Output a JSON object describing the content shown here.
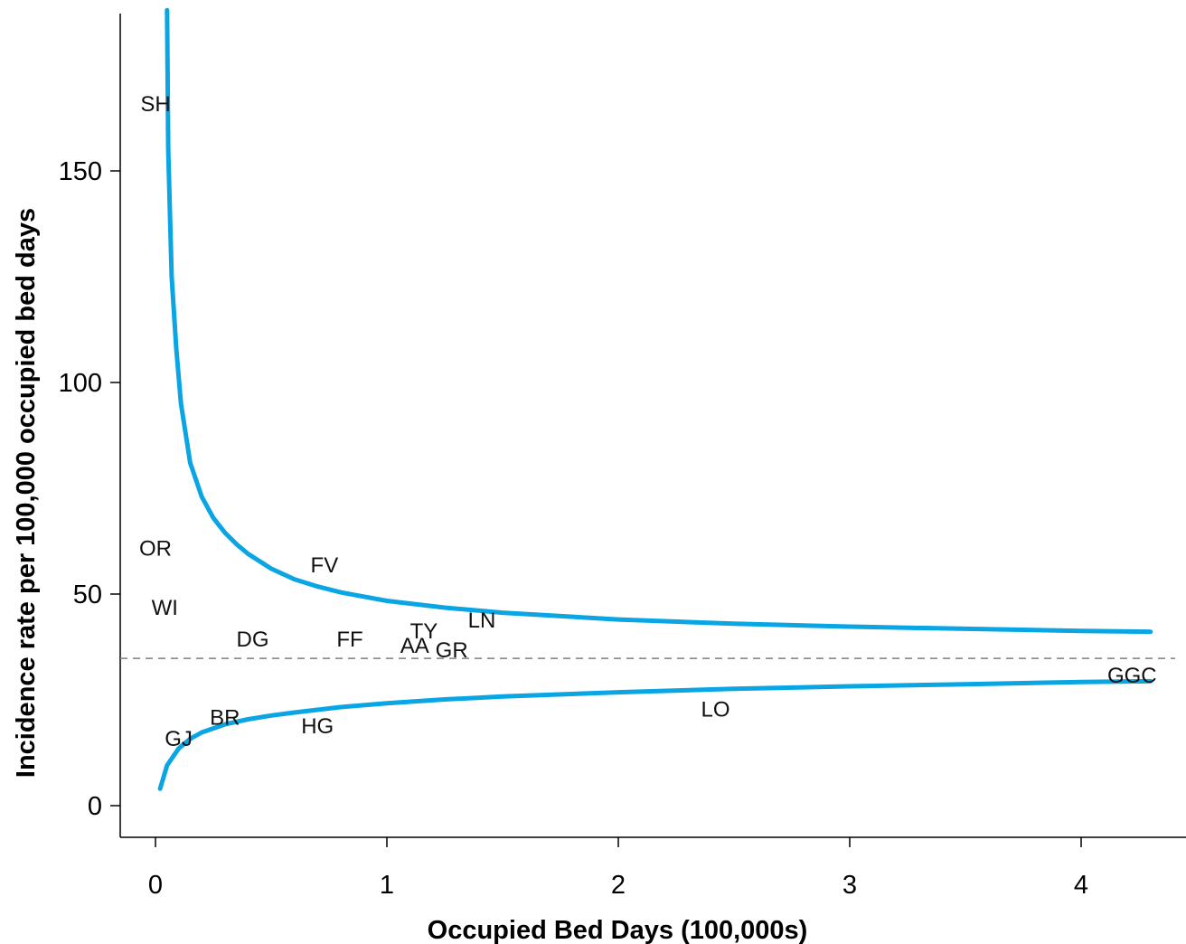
{
  "chart_data": {
    "type": "scatter",
    "title": "",
    "xlabel": "Occupied Bed Days (100,000s)",
    "ylabel": "Incidence rate per 100,000 occupied bed days",
    "xlim": [
      -0.15,
      4.3
    ],
    "ylim": [
      -7,
      188
    ],
    "x_ticks": [
      0,
      1,
      2,
      3,
      4
    ],
    "y_ticks": [
      0,
      50,
      100,
      150
    ],
    "grid": false,
    "legend": "none",
    "reference_line": {
      "y": 34.8,
      "style": "dashed",
      "color": "#7f7f7f"
    },
    "points": [
      {
        "label": "SH",
        "x": 0.0,
        "y": 166
      },
      {
        "label": "OR",
        "x": 0.0,
        "y": 61
      },
      {
        "label": "WI",
        "x": 0.04,
        "y": 47
      },
      {
        "label": "DG",
        "x": 0.42,
        "y": 39.5
      },
      {
        "label": "FV",
        "x": 0.73,
        "y": 57
      },
      {
        "label": "FF",
        "x": 0.84,
        "y": 39.5
      },
      {
        "label": "TY",
        "x": 1.16,
        "y": 41.5
      },
      {
        "label": "AA",
        "x": 1.12,
        "y": 38
      },
      {
        "label": "GR",
        "x": 1.28,
        "y": 37
      },
      {
        "label": "LN",
        "x": 1.41,
        "y": 44
      },
      {
        "label": "GJ",
        "x": 0.1,
        "y": 16
      },
      {
        "label": "BR",
        "x": 0.3,
        "y": 21
      },
      {
        "label": "HG",
        "x": 0.7,
        "y": 19
      },
      {
        "label": "LO",
        "x": 2.42,
        "y": 23
      },
      {
        "label": "GGC",
        "x": 4.22,
        "y": 31
      }
    ],
    "upper_limit": {
      "x": [
        0.05,
        0.055,
        0.07,
        0.09,
        0.11,
        0.15,
        0.2,
        0.25,
        0.3,
        0.35,
        0.4,
        0.5,
        0.6,
        0.7,
        0.8,
        1.0,
        1.25,
        1.5,
        2.0,
        2.5,
        3.0,
        3.5,
        4.0,
        4.3
      ],
      "y": [
        188,
        155,
        125,
        108,
        95,
        81,
        73,
        68,
        64.5,
        61.8,
        59.5,
        56,
        53.5,
        51.8,
        50.4,
        48.4,
        46.8,
        45.6,
        44,
        43,
        42.3,
        41.8,
        41.3,
        41.1
      ]
    },
    "lower_limit": {
      "x": [
        0.02,
        0.05,
        0.1,
        0.15,
        0.2,
        0.3,
        0.4,
        0.5,
        0.6,
        0.8,
        1.0,
        1.25,
        1.5,
        2.0,
        2.5,
        3.0,
        3.5,
        4.0,
        4.3
      ],
      "y": [
        4,
        9.5,
        13.5,
        15.8,
        17.3,
        19.2,
        20.4,
        21.3,
        22,
        23.3,
        24.2,
        25.1,
        25.8,
        26.8,
        27.6,
        28.2,
        28.7,
        29.2,
        29.4
      ]
    },
    "limit_color": "#0aa5e3"
  }
}
